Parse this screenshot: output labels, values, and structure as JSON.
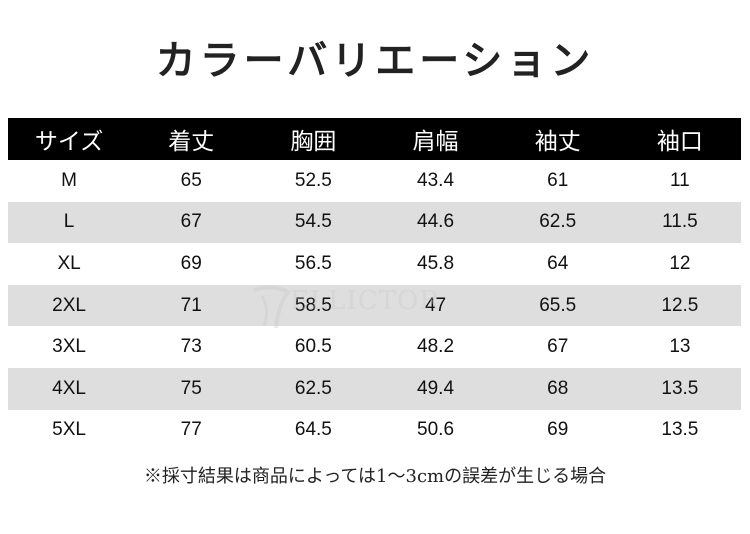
{
  "title": "カラーバリエーション",
  "table": {
    "headers": [
      "サイズ",
      "着丈",
      "胸囲",
      "肩幅",
      "袖丈",
      "袖口"
    ],
    "rows": [
      [
        "M",
        "65",
        "52.5",
        "43.4",
        "61",
        "11"
      ],
      [
        "L",
        "67",
        "54.5",
        "44.6",
        "62.5",
        "11.5"
      ],
      [
        "XL",
        "69",
        "56.5",
        "45.8",
        "64",
        "12"
      ],
      [
        "2XL",
        "71",
        "58.5",
        "47",
        "65.5",
        "12.5"
      ],
      [
        "3XL",
        "73",
        "60.5",
        "48.2",
        "67",
        "13"
      ],
      [
        "4XL",
        "75",
        "62.5",
        "49.4",
        "68",
        "13.5"
      ],
      [
        "5XL",
        "77",
        "64.5",
        "50.6",
        "69",
        "13.5"
      ]
    ]
  },
  "watermark": "ELLICTOR",
  "note": "※採寸結果は商品によっては1～3cmの誤差が生じる場合",
  "colors": {
    "header_bg": "#000000",
    "stripe": "#dedede",
    "text": "#111111"
  }
}
